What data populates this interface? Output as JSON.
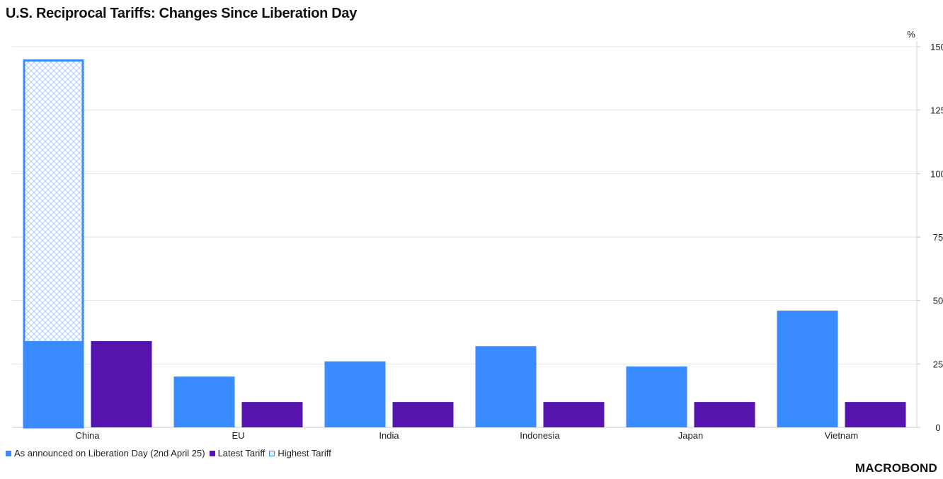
{
  "chart_data": {
    "type": "bar",
    "title": "U.S. Reciprocal Tariffs: Changes Since Liberation Day",
    "ylabel": "%",
    "ylim": [
      0,
      150
    ],
    "yticks": [
      0,
      25,
      50,
      75,
      100,
      125,
      150
    ],
    "grid": true,
    "legend_position": "bottom-left",
    "categories": [
      "China",
      "EU",
      "India",
      "Indonesia",
      "Japan",
      "Vietnam"
    ],
    "series": [
      {
        "name": "As announced on Liberation Day (2nd April 25)",
        "values": [
          34,
          20,
          26,
          32,
          24,
          46
        ],
        "color": "#3a8bff"
      },
      {
        "name": "Latest Tariff",
        "values": [
          34,
          10,
          10,
          10,
          10,
          10
        ],
        "color": "#5514ad"
      },
      {
        "name": "Highest Tariff",
        "values": [
          145,
          null,
          null,
          null,
          null,
          null
        ],
        "color": "#3a8bff",
        "style": "hatched"
      }
    ]
  },
  "logo_text": "MACROBOND"
}
